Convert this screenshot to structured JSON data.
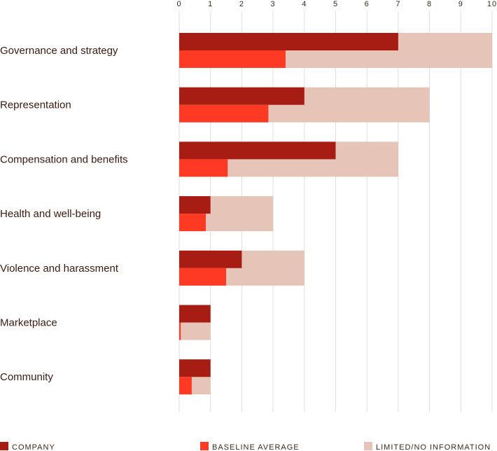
{
  "chart_data": {
    "type": "bar",
    "orientation": "horizontal",
    "xlim": [
      0,
      10
    ],
    "ticks": [
      "0",
      "1",
      "2",
      "3",
      "4",
      "5",
      "6",
      "7",
      "8",
      "9",
      "10"
    ],
    "grid": true,
    "categories": [
      "Governance and strategy",
      "Representation",
      "Compensation and benefits",
      "Health and well-being",
      "Violence and harassment",
      "Marketplace",
      "Community"
    ],
    "series": [
      {
        "name": "COMPANY",
        "color": "#a71d14",
        "values": [
          7,
          4,
          5,
          1,
          2,
          1,
          1
        ]
      },
      {
        "name": "BASELINE AVERAGE",
        "color": "#ff3a24",
        "values": [
          3.4,
          2.85,
          1.55,
          0.85,
          1.5,
          0.05,
          0.4
        ]
      },
      {
        "name": "LIMITED/NO INFORMATION",
        "color": "#e7c4b8",
        "values": [
          10,
          8,
          7,
          3,
          4,
          1,
          1
        ]
      }
    ],
    "legend_position": "bottom"
  }
}
